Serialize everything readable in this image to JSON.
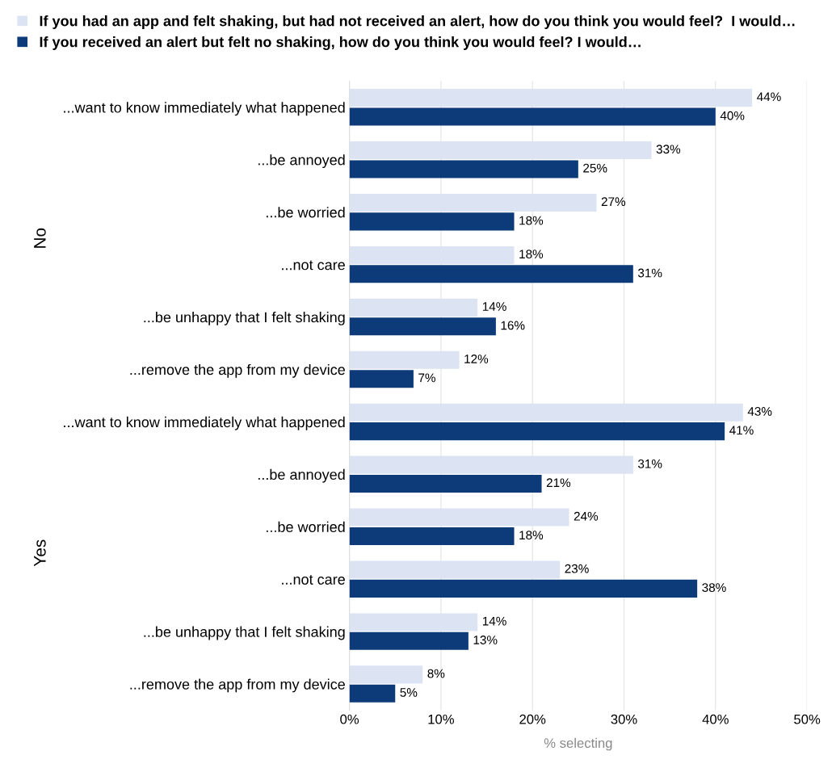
{
  "chart_data": [
    {
      "type": "bar",
      "orientation": "horizontal",
      "ylabel": "No",
      "categories": [
        "...want to know immediately what happened",
        "...be annoyed",
        "...be worried",
        "...not care",
        "...be unhappy that I felt shaking",
        "...remove the app from my device"
      ],
      "series": [
        {
          "name": "If you had an app and felt shaking, but had not received an alert, how do you think you would feel?  I would…",
          "color": "#dce3f3",
          "values": [
            44,
            33,
            27,
            18,
            14,
            12
          ],
          "value_labels": [
            "44%",
            "33%",
            "27%",
            "18%",
            "14%",
            "12%"
          ]
        },
        {
          "name": "If you received an alert but felt no shaking, how do you think you would feel? I would…",
          "color": "#0d3a78",
          "values": [
            40,
            25,
            18,
            31,
            16,
            7
          ],
          "value_labels": [
            "40%",
            "25%",
            "18%",
            "31%",
            "16%",
            "7%"
          ]
        }
      ],
      "xlim": [
        0,
        50
      ],
      "xticks": [
        0,
        10,
        20,
        30,
        40,
        50
      ],
      "tick_labels": "y",
      "grid": "x",
      "legend": "top"
    },
    {
      "type": "bar",
      "orientation": "horizontal",
      "ylabel": "Yes",
      "xlabel": "% selecting",
      "categories": [
        "...want to know immediately what happened",
        "...be annoyed",
        "...be worried",
        "...not care",
        "...be unhappy that I felt shaking",
        "...remove the app from my device"
      ],
      "series": [
        {
          "color": "#dce3f3",
          "values": [
            43,
            31,
            24,
            23,
            14,
            8
          ],
          "value_labels": [
            "43%",
            "31%",
            "24%",
            "23%",
            "14%",
            "8%"
          ]
        },
        {
          "color": "#0d3a78",
          "values": [
            41,
            21,
            18,
            38,
            13,
            5
          ],
          "value_labels": [
            "41%",
            "21%",
            "18%",
            "38%",
            "13%",
            "5%"
          ]
        }
      ],
      "xlim": [
        0,
        50
      ],
      "xticks": [
        {
          "value": 0,
          "label": "0%"
        },
        {
          "value": 10,
          "label": "10%"
        },
        {
          "value": 20,
          "label": "20%"
        },
        {
          "value": 30,
          "label": "30%"
        },
        {
          "value": 40,
          "label": "40%"
        },
        {
          "value": 50,
          "label": "50%"
        }
      ],
      "grid": "x"
    }
  ]
}
